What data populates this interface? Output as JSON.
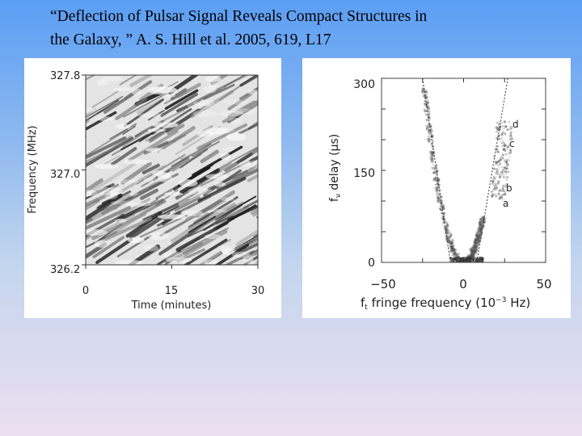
{
  "title": {
    "line1": "“Deflection of Pulsar Signal Reveals Compact Structures in",
    "line2": "the Galaxy, ”   A. S. Hill et al.  2005,  619,  L17"
  },
  "chart_data": [
    {
      "type": "heatmap",
      "description_colormap": "grayscale dynamic spectrum",
      "xlabel": "Time  (minutes)",
      "ylabel": "Frequency  (MHz)",
      "x_ticks": [
        "0",
        "15",
        "30"
      ],
      "y_ticks": [
        "327.8",
        "327.0",
        "326.2"
      ],
      "xlim": [
        0,
        30
      ],
      "ylim": [
        326.2,
        327.8
      ]
    },
    {
      "type": "heatmap",
      "description_colormap": "grayscale secondary spectrum with arclets",
      "xlabel_prefix": "f",
      "xlabel_sub": "t",
      "xlabel_main": "  fringe frequency  (10",
      "xlabel_sup": "−3",
      "xlabel_end": " Hz)",
      "ylabel_prefix": "f",
      "ylabel_sub": "ν",
      "ylabel_main": "  delay  (μs)",
      "x_ticks": [
        "−50",
        "0",
        "50"
      ],
      "y_ticks": [
        "300",
        "150",
        "0"
      ],
      "xlim": [
        -50,
        50
      ],
      "ylim": [
        0,
        300
      ],
      "annotations": [
        "d",
        "c",
        "b",
        "a"
      ]
    }
  ]
}
